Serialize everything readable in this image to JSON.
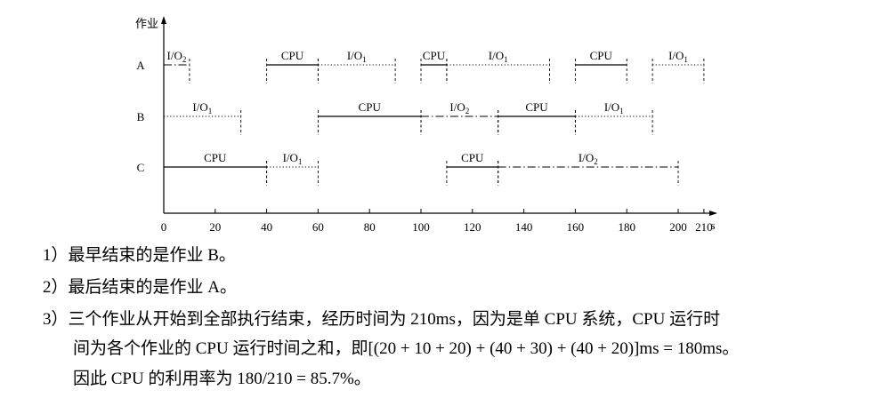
{
  "chart_data": {
    "type": "gantt",
    "ylabel": "作业",
    "xlabel": "s",
    "xlim": [
      0,
      215
    ],
    "x_ticks": [
      0,
      20,
      40,
      60,
      80,
      100,
      120,
      140,
      160,
      180,
      200,
      210
    ],
    "row_labels": [
      "A",
      "B",
      "C"
    ],
    "line_styles": {
      "CPU": "solid",
      "I/O1": "dotted",
      "I/O2": "dash-dot"
    },
    "segments": [
      {
        "row": "A",
        "kind": "I/O2",
        "label": "I/O",
        "sub": "2",
        "start": 0,
        "end": 10
      },
      {
        "row": "A",
        "kind": "CPU",
        "label": "CPU",
        "sub": "",
        "start": 40,
        "end": 60
      },
      {
        "row": "A",
        "kind": "I/O1",
        "label": "I/O",
        "sub": "1",
        "start": 60,
        "end": 90
      },
      {
        "row": "A",
        "kind": "CPU",
        "label": "CPU",
        "sub": "",
        "start": 100,
        "end": 110
      },
      {
        "row": "A",
        "kind": "I/O1",
        "label": "I/O",
        "sub": "1",
        "start": 110,
        "end": 150
      },
      {
        "row": "A",
        "kind": "CPU",
        "label": "CPU",
        "sub": "",
        "start": 160,
        "end": 180
      },
      {
        "row": "A",
        "kind": "I/O1",
        "label": "I/O",
        "sub": "1",
        "start": 190,
        "end": 210
      },
      {
        "row": "B",
        "kind": "I/O1",
        "label": "I/O",
        "sub": "1",
        "start": 0,
        "end": 30
      },
      {
        "row": "B",
        "kind": "CPU",
        "label": "CPU",
        "sub": "",
        "start": 60,
        "end": 100
      },
      {
        "row": "B",
        "kind": "I/O2",
        "label": "I/O",
        "sub": "2",
        "start": 100,
        "end": 130
      },
      {
        "row": "B",
        "kind": "CPU",
        "label": "CPU",
        "sub": "",
        "start": 130,
        "end": 160
      },
      {
        "row": "B",
        "kind": "I/O1",
        "label": "I/O",
        "sub": "1",
        "start": 160,
        "end": 190
      },
      {
        "row": "C",
        "kind": "CPU",
        "label": "CPU",
        "sub": "",
        "start": 0,
        "end": 40
      },
      {
        "row": "C",
        "kind": "I/O1",
        "label": "I/O",
        "sub": "1",
        "start": 40,
        "end": 60
      },
      {
        "row": "C",
        "kind": "CPU",
        "label": "CPU",
        "sub": "",
        "start": 110,
        "end": 130
      },
      {
        "row": "C",
        "kind": "I/O2",
        "label": "I/O",
        "sub": "2",
        "start": 130,
        "end": 200
      }
    ]
  },
  "answers": {
    "a1": "1）最早结束的是作业 B。",
    "a2": "2）最后结束的是作业 A。",
    "a3_line1": "3）三个作业从开始到全部执行结束，经历时间为 210ms，因为是单 CPU 系统，CPU 运行时",
    "a3_line2": "间为各个作业的 CPU 运行时间之和，即[(20 + 10 + 20) + (40 + 30) + (40 + 20)]ms = 180ms。",
    "a3_line3": "因此 CPU 的利用率为 180/210 = 85.7%。"
  }
}
